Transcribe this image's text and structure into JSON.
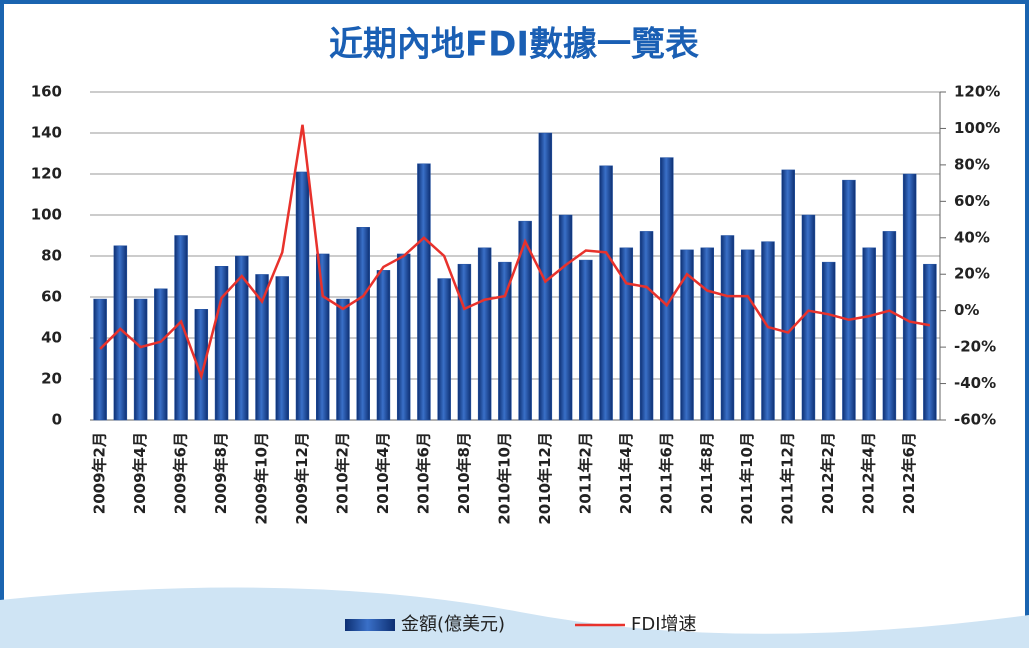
{
  "chart_data": {
    "type": "bar_line",
    "title": "近期內地FDI數據一覽表",
    "categories": [
      "2009年2月",
      null,
      "2009年4月",
      null,
      "2009年6月",
      null,
      "2009年8月",
      null,
      "2009年10月",
      null,
      "2009年12月",
      null,
      "2010年2月",
      null,
      "2010年4月",
      null,
      "2010年6月",
      null,
      "2010年8月",
      null,
      "2010年10月",
      null,
      "2010年12月",
      null,
      "2011年2月",
      null,
      "2011年4月",
      null,
      "2011年6月",
      null,
      "2011年8月",
      null,
      "2011年10月",
      null,
      "2011年12月",
      null,
      "2012年2月",
      null,
      "2012年4月",
      null,
      "2012年6月",
      null
    ],
    "series": [
      {
        "name": "金額(億美元)",
        "color": "#1f4fa0",
        "values": [
          59,
          85,
          59,
          64,
          90,
          54,
          75,
          80,
          71,
          70,
          121,
          81,
          59,
          94,
          73,
          81,
          125,
          69,
          76,
          84,
          77,
          97,
          140,
          100,
          78,
          124,
          84,
          92,
          128,
          83,
          84,
          90,
          83,
          87,
          122,
          100,
          77,
          117,
          84,
          92,
          120,
          76
        ]
      },
      {
        "name": "FDI增速",
        "color": "#e8322c",
        "axis": "y2",
        "values": [
          -21,
          -10,
          -20,
          -17,
          -6,
          -36,
          7,
          19,
          5,
          32,
          102,
          8,
          1,
          8,
          24,
          30,
          40,
          30,
          1,
          6,
          8,
          38,
          16,
          25,
          33,
          32,
          15,
          13,
          3,
          20,
          11,
          8,
          8,
          -9,
          -12,
          0,
          -2,
          -5,
          -3,
          0,
          -6,
          -8
        ]
      }
    ],
    "ylim": [
      0,
      160
    ],
    "yticks": [
      0,
      20,
      40,
      60,
      80,
      100,
      120,
      140,
      160
    ],
    "y2lim": [
      -60,
      120
    ],
    "y2ticks": [
      {
        "value": -60,
        "label": "-60%"
      },
      {
        "value": -40,
        "label": "-40%"
      },
      {
        "value": -20,
        "label": "-20%"
      },
      {
        "value": 0,
        "label": "0%"
      },
      {
        "value": 20,
        "label": "20%"
      },
      {
        "value": 40,
        "label": "40%"
      },
      {
        "value": 60,
        "label": "60%"
      },
      {
        "value": 80,
        "label": "80%"
      },
      {
        "value": 100,
        "label": "100%"
      },
      {
        "value": 120,
        "label": "120%"
      }
    ],
    "grid": true,
    "legend": "bottom"
  }
}
